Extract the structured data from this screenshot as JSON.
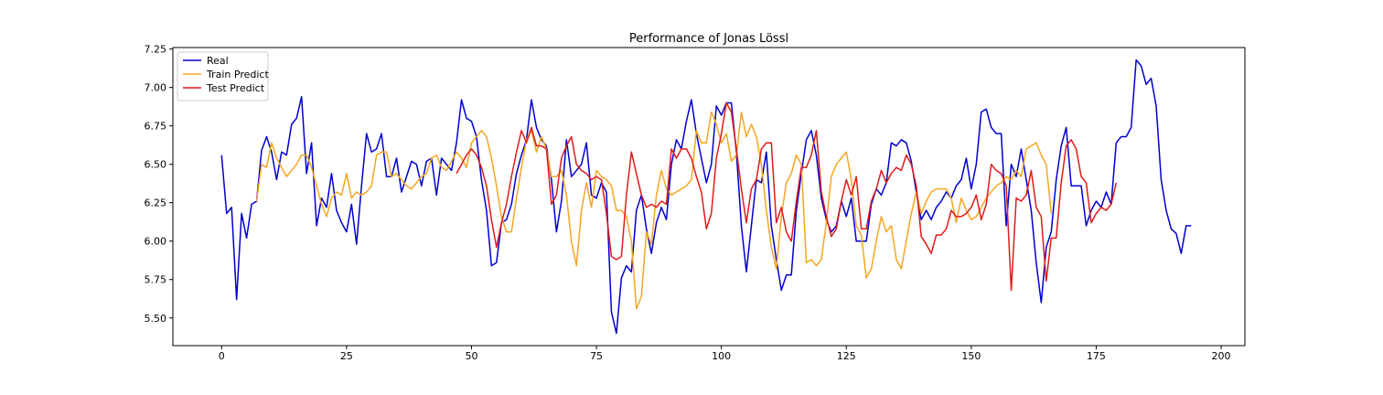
{
  "chart_data": {
    "type": "line",
    "title": "Performance of Jonas Lössl",
    "xlim": [
      -9.75,
      204.75
    ],
    "ylim": [
      5.32,
      7.26
    ],
    "x_ticks": [
      0,
      25,
      50,
      75,
      100,
      125,
      150,
      175,
      200
    ],
    "x_tick_labels": [
      "0",
      "25",
      "50",
      "75",
      "100",
      "125",
      "150",
      "175",
      "200"
    ],
    "y_ticks": [
      5.5,
      5.75,
      6.0,
      6.25,
      6.5,
      6.75,
      7.0,
      7.25
    ],
    "y_tick_labels": [
      "5.50",
      "5.75",
      "6.00",
      "6.25",
      "6.50",
      "6.75",
      "7.00",
      "7.25"
    ],
    "grid": false,
    "legend_position": "top-left",
    "series": [
      {
        "name": "Real",
        "color": "#0000cd",
        "x_start": 0,
        "values": [
          6.56,
          6.18,
          6.22,
          5.62,
          6.18,
          6.02,
          6.24,
          6.26,
          6.59,
          6.68,
          6.58,
          6.4,
          6.58,
          6.56,
          6.76,
          6.8,
          6.94,
          6.44,
          6.64,
          6.1,
          6.28,
          6.22,
          6.44,
          6.2,
          6.12,
          6.06,
          6.24,
          5.98,
          6.36,
          6.7,
          6.58,
          6.6,
          6.7,
          6.42,
          6.42,
          6.54,
          6.32,
          6.42,
          6.52,
          6.5,
          6.36,
          6.52,
          6.54,
          6.3,
          6.54,
          6.5,
          6.46,
          6.64,
          6.92,
          6.8,
          6.78,
          6.68,
          6.4,
          6.2,
          5.84,
          5.86,
          6.12,
          6.14,
          6.24,
          6.44,
          6.56,
          6.66,
          6.92,
          6.74,
          6.66,
          6.62,
          6.4,
          6.06,
          6.26,
          6.66,
          6.42,
          6.46,
          6.5,
          6.64,
          6.3,
          6.28,
          6.38,
          6.32,
          5.54,
          5.4,
          5.76,
          5.84,
          5.8,
          6.2,
          6.3,
          6.08,
          5.92,
          6.12,
          6.22,
          6.14,
          6.5,
          6.66,
          6.6,
          6.78,
          6.92,
          6.7,
          6.54,
          6.38,
          6.5,
          6.88,
          6.82,
          6.9,
          6.9,
          6.58,
          6.1,
          5.8,
          6.1,
          6.4,
          6.38,
          6.58,
          6.1,
          5.88,
          5.68,
          5.78,
          5.78,
          6.2,
          6.44,
          6.66,
          6.72,
          6.56,
          6.28,
          6.14,
          6.06,
          6.1,
          6.26,
          6.16,
          6.28,
          6.0,
          6.0,
          6.0,
          6.24,
          6.34,
          6.3,
          6.38,
          6.64,
          6.62,
          6.66,
          6.64,
          6.52,
          6.32,
          6.14,
          6.2,
          6.14,
          6.22,
          6.26,
          6.32,
          6.28,
          6.36,
          6.4,
          6.54,
          6.34,
          6.5,
          6.84,
          6.86,
          6.74,
          6.7,
          6.7,
          6.1,
          6.5,
          6.42,
          6.6,
          6.4,
          6.2,
          5.86,
          5.6,
          5.96,
          6.06,
          6.4,
          6.62,
          6.74,
          6.36,
          6.36,
          6.36,
          6.1,
          6.2,
          6.26,
          6.22,
          6.32,
          6.24,
          6.64,
          6.68,
          6.68,
          6.74,
          7.18,
          7.14,
          7.02,
          7.06,
          6.88,
          6.4,
          6.2,
          6.08,
          6.05,
          5.92,
          6.1,
          6.1
        ]
      },
      {
        "name": "Train Predict",
        "color": "#f5a623",
        "x_start": 7,
        "values": [
          6.26,
          6.5,
          6.48,
          6.64,
          6.54,
          6.48,
          6.42,
          6.46,
          6.5,
          6.56,
          6.56,
          6.48,
          6.36,
          6.24,
          6.16,
          6.28,
          6.32,
          6.3,
          6.44,
          6.28,
          6.32,
          6.3,
          6.32,
          6.36,
          6.56,
          6.58,
          6.58,
          6.42,
          6.44,
          6.4,
          6.36,
          6.34,
          6.38,
          6.42,
          6.44,
          6.54,
          6.56,
          6.48,
          6.46,
          6.52,
          6.58,
          6.54,
          6.48,
          6.64,
          6.68,
          6.72,
          6.68,
          6.54,
          6.36,
          6.16,
          6.06,
          6.06,
          6.28,
          6.48,
          6.66,
          6.72,
          6.58,
          6.68,
          6.6,
          6.42,
          6.42,
          6.46,
          6.3,
          6.0,
          5.84,
          6.2,
          6.38,
          6.22,
          6.46,
          6.42,
          6.4,
          6.36,
          6.2,
          6.2,
          6.16,
          6.0,
          5.56,
          5.64,
          6.06,
          5.98,
          6.3,
          6.46,
          6.34,
          6.3,
          6.32,
          6.34,
          6.36,
          6.4,
          6.72,
          6.64,
          6.64,
          6.84,
          6.76,
          6.64,
          6.7,
          6.52,
          6.56,
          6.84,
          6.68,
          6.76,
          6.68,
          6.5,
          6.2,
          5.96,
          5.82,
          6.16,
          6.38,
          6.44,
          6.56,
          6.5,
          5.86,
          5.88,
          5.84,
          5.88,
          6.12,
          6.42,
          6.5,
          6.54,
          6.58,
          6.4,
          6.1,
          6.04,
          5.76,
          5.82,
          6.0,
          6.16,
          6.06,
          6.1,
          5.88,
          5.82,
          6.0,
          6.18,
          6.32,
          6.18,
          6.26,
          6.32,
          6.34,
          6.34,
          6.34,
          6.28,
          6.12,
          6.28,
          6.2,
          6.14,
          6.16,
          6.22,
          6.28,
          6.32,
          6.36,
          6.38,
          6.42,
          6.4,
          6.46,
          6.42,
          6.6,
          6.62,
          6.64,
          6.56,
          6.5,
          6.18
        ]
      },
      {
        "name": "Test Predict",
        "color": "#e01a1a",
        "x_start": 47,
        "values": [
          6.44,
          6.5,
          6.56,
          6.6,
          6.56,
          6.48,
          6.36,
          6.14,
          5.96,
          6.12,
          6.24,
          6.42,
          6.58,
          6.72,
          6.64,
          6.74,
          6.62,
          6.62,
          6.6,
          6.24,
          6.3,
          6.54,
          6.62,
          6.68,
          6.5,
          6.46,
          6.44,
          6.4,
          6.42,
          6.4,
          6.18,
          5.9,
          5.88,
          5.9,
          6.3,
          6.58,
          6.44,
          6.3,
          6.22,
          6.24,
          6.22,
          6.26,
          6.24,
          6.6,
          6.54,
          6.6,
          6.6,
          6.54,
          6.42,
          6.32,
          6.08,
          6.18,
          6.54,
          6.7,
          6.9,
          6.84,
          6.6,
          6.34,
          6.12,
          6.34,
          6.4,
          6.6,
          6.64,
          6.64,
          6.12,
          6.22,
          6.06,
          6.0,
          6.26,
          6.48,
          6.48,
          6.56,
          6.72,
          6.32,
          6.16,
          6.03,
          6.08,
          6.26,
          6.4,
          6.3,
          6.42,
          6.08,
          6.08,
          6.26,
          6.34,
          6.46,
          6.38,
          6.44,
          6.48,
          6.46,
          6.56,
          6.5,
          6.36,
          6.03,
          5.98,
          5.92,
          6.04,
          6.04,
          6.08,
          6.2,
          6.16,
          6.16,
          6.18,
          6.22,
          6.3,
          6.14,
          6.24,
          6.5,
          6.46,
          6.44,
          6.36,
          5.68,
          6.28,
          6.26,
          6.3,
          6.46,
          6.22,
          6.16,
          5.74,
          6.02,
          6.02,
          6.38,
          6.62,
          6.66,
          6.6,
          6.42,
          6.38,
          6.12,
          6.18,
          6.22,
          6.2,
          6.24,
          6.38
        ]
      }
    ]
  }
}
